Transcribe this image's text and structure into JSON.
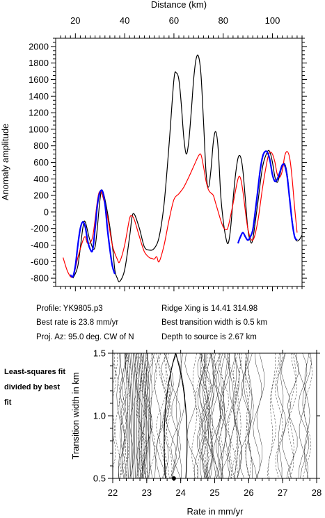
{
  "chart_data": [
    {
      "type": "line",
      "xlabel": "Distance (km)",
      "ylabel": "Anomaly amplitude",
      "xlim": [
        12,
        112
      ],
      "ylim": [
        -900,
        2100
      ],
      "x_ticks": [
        20,
        40,
        60,
        80,
        100
      ],
      "y_ticks": [
        -800,
        -600,
        -400,
        -200,
        0,
        200,
        400,
        600,
        800,
        1000,
        1200,
        1400,
        1600,
        1800,
        2000
      ],
      "series": [
        {
          "color": "#000000",
          "x": [
            19,
            21,
            23,
            24,
            26,
            28,
            30,
            31,
            33,
            35,
            36,
            37,
            38,
            40,
            42,
            43,
            44,
            46,
            48,
            50,
            52,
            54,
            56,
            58,
            60,
            61,
            62,
            63,
            64,
            65,
            66,
            67,
            68,
            69,
            70,
            71,
            72,
            73,
            74,
            75,
            76,
            77,
            78,
            79,
            80,
            81,
            82,
            83,
            84,
            85,
            86,
            87,
            88,
            89,
            90,
            91,
            92,
            94,
            96,
            98,
            99,
            100,
            101,
            102,
            103,
            104,
            105,
            106,
            107,
            108,
            109,
            110,
            111,
            112
          ],
          "y": [
            -800,
            -650,
            -200,
            -120,
            -350,
            -420,
            150,
            260,
            0,
            -400,
            -700,
            -800,
            -840,
            -700,
            -300,
            -60,
            -30,
            -200,
            -420,
            -460,
            -440,
            -300,
            100,
            800,
            1600,
            1680,
            1600,
            1300,
            900,
            700,
            850,
            1200,
            1600,
            1850,
            1880,
            1650,
            1100,
            500,
            300,
            500,
            850,
            970,
            750,
            200,
            -100,
            -300,
            -380,
            -200,
            150,
            450,
            650,
            670,
            500,
            150,
            -200,
            -350,
            -330,
            100,
            550,
            730,
            720,
            600,
            420,
            360,
            450,
            560,
            580,
            450,
            150,
            -100,
            -300,
            -350,
            -330,
            -280
          ]
        },
        {
          "color": "#ff0000",
          "x": [
            15,
            17,
            19,
            21,
            23,
            24,
            25,
            27,
            29,
            30,
            31,
            33,
            35,
            37,
            38,
            40,
            42,
            43,
            44,
            46,
            48,
            50,
            51,
            52,
            53,
            54,
            56,
            58,
            60,
            62,
            64,
            66,
            68,
            70,
            71,
            72,
            73,
            74,
            75,
            76,
            77,
            78,
            79,
            80,
            81,
            82,
            84,
            86,
            87,
            88,
            90,
            92,
            94,
            96,
            98,
            99,
            100,
            101,
            102,
            103,
            104,
            105,
            106,
            107,
            108,
            109,
            110
          ],
          "y": [
            -550,
            -730,
            -780,
            -550,
            -350,
            -300,
            -380,
            -300,
            150,
            250,
            200,
            -50,
            -400,
            -570,
            -600,
            -400,
            -80,
            -50,
            -100,
            -300,
            -480,
            -550,
            -560,
            -570,
            -540,
            -600,
            -400,
            -100,
            150,
            220,
            300,
            420,
            550,
            680,
            690,
            550,
            380,
            270,
            230,
            200,
            100,
            0,
            -100,
            -180,
            -210,
            -180,
            100,
            400,
            410,
            250,
            -200,
            -340,
            -120,
            300,
            640,
            720,
            700,
            600,
            450,
            420,
            500,
            680,
            730,
            650,
            400,
            50,
            -250
          ]
        },
        {
          "color": "#0000ff",
          "x": [
            18,
            19,
            20,
            21,
            22,
            23,
            24,
            25,
            26,
            27,
            28,
            29,
            30,
            31,
            32,
            33,
            34,
            35,
            36,
            86,
            87,
            88,
            89,
            90,
            91,
            92,
            93,
            94,
            95,
            96,
            97,
            98,
            99,
            100,
            101,
            102,
            103,
            104,
            105,
            106,
            107,
            108,
            109,
            110
          ],
          "y": [
            -760,
            -780,
            -650,
            -400,
            -200,
            -120,
            -180,
            -350,
            -450,
            -460,
            -200,
            100,
            240,
            250,
            100,
            -200,
            -450,
            -650,
            -750,
            -380,
            -300,
            -250,
            -300,
            -340,
            -300,
            -220,
            0,
            250,
            500,
            670,
            730,
            720,
            620,
            450,
            370,
            400,
            480,
            570,
            560,
            420,
            150,
            -120,
            -300,
            -340
          ]
        }
      ]
    },
    {
      "type": "contour",
      "xlabel": "Rate in mm/yr",
      "ylabel": "Transition width in km",
      "xlim": [
        22,
        28
      ],
      "ylim": [
        0.5,
        1.5
      ],
      "x_ticks": [
        22,
        23,
        24,
        25,
        26,
        27,
        28
      ],
      "y_ticks": [
        0.5,
        1.0,
        1.5
      ],
      "best_fit_point": {
        "rate": 23.8,
        "width": 0.5
      }
    }
  ],
  "annotations": {
    "profile": "Profile: YK9805.p3",
    "best_rate": "Best rate is 23.8 mm/yr",
    "proj_az": "Proj. Az: 95.0 deg. CW of N",
    "ridge_xing": "Ridge Xing is 14.41 314.98",
    "best_transition": "Best transition width is 0.5 km",
    "depth": "Depth to source is   2.67 km",
    "side_note": "Least-squares fit divided by best fit"
  }
}
